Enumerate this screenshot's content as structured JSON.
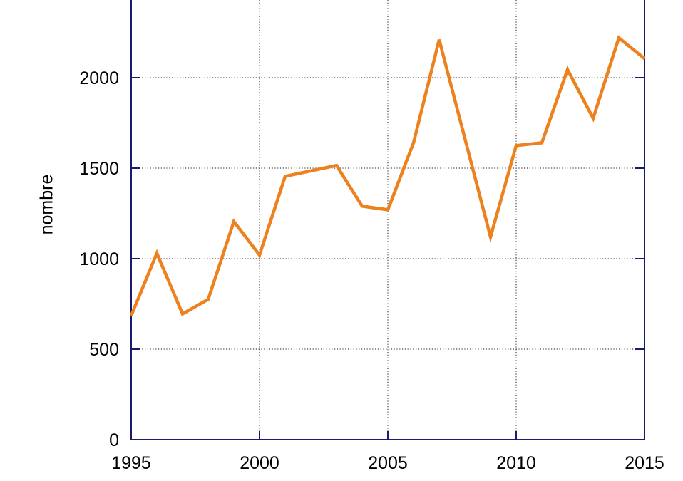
{
  "chart_data": {
    "type": "line",
    "title": "",
    "xlabel": "",
    "ylabel": "nombre",
    "x": [
      1995,
      1996,
      1997,
      1998,
      1999,
      2000,
      2001,
      2002,
      2003,
      2004,
      2005,
      2006,
      2007,
      2008,
      2009,
      2010,
      2011,
      2012,
      2013,
      2014,
      2015
    ],
    "values": [
      685,
      1030,
      695,
      775,
      1205,
      1020,
      1455,
      1485,
      1515,
      1290,
      1270,
      1640,
      2210,
      1665,
      1120,
      1625,
      1640,
      2045,
      1775,
      2220,
      2105
    ],
    "x_ticks": [
      1995,
      2000,
      2005,
      2010,
      2015
    ],
    "y_ticks": [
      0,
      500,
      1000,
      1500,
      2000
    ],
    "xlim": [
      1995,
      2015
    ],
    "ylim_visible": [
      0,
      2430
    ],
    "grid": "dotted",
    "legend": "none",
    "note_top_cropped": "plot area is cut off at the top edge of the image",
    "colors": {
      "line": "#ed811e",
      "axis": "#1a1a6e",
      "grid": "#1a1a1a",
      "text": "#000000",
      "background": "#ffffff"
    }
  }
}
